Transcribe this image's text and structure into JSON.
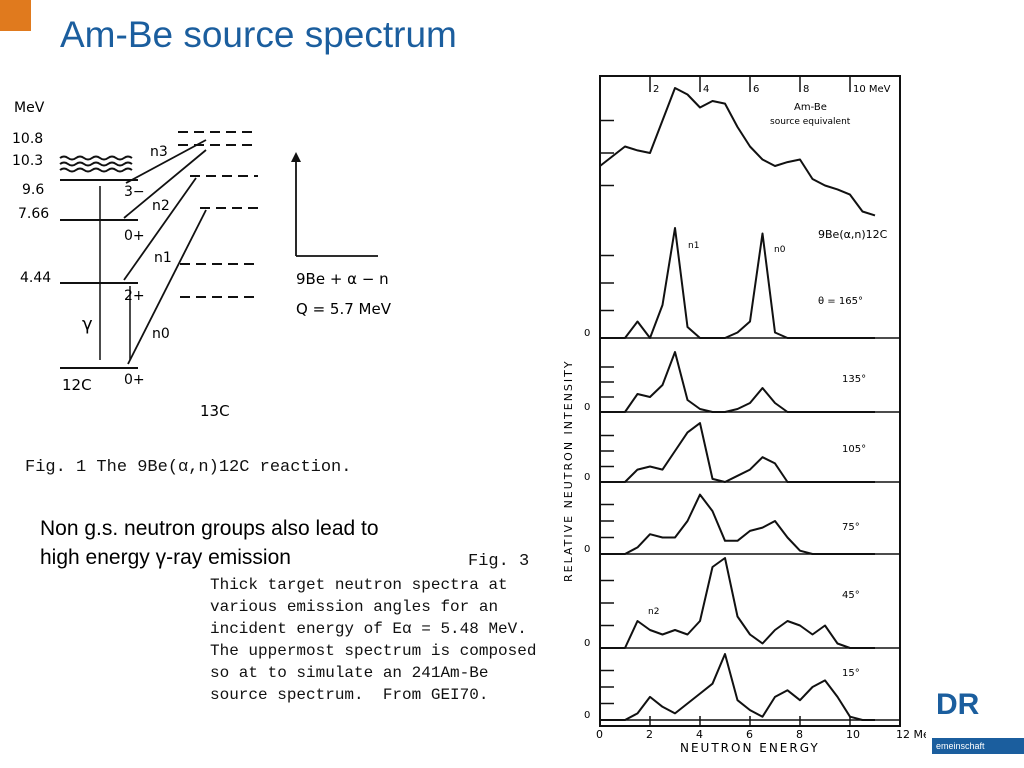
{
  "slide": {
    "title": "Am-Be source spectrum",
    "note_line1": "Non g.s. neutron groups also lead to",
    "note_line2": "high energy γ-ray emission",
    "logo_text": "DR",
    "footer_text": "emeinschaft",
    "accent_color": "#1b5e9e",
    "corner_color": "#e07a1e"
  },
  "fig1": {
    "unit": "MeV",
    "levels": [
      "10.8",
      "10.3",
      "9.6",
      "7.66",
      "4.44"
    ],
    "states": [
      "3−",
      "0+",
      "2+",
      "0+"
    ],
    "groups": [
      "n3",
      "n2",
      "n1",
      "n0"
    ],
    "gamma": "γ",
    "c12": "12C",
    "c13": "13C",
    "reaction": "9Be + α − n",
    "q_value": "Q = 5.7 MeV",
    "caption_prefix": "Fig. 1  The ",
    "caption_reaction": "9Be(α,n)12C reaction."
  },
  "fig3": {
    "heading": "Fig. 3",
    "caption_lines": [
      "Thick target neutron spectra at",
      "various emission angles for an",
      "incident energy of Eα = 5.48 MeV.",
      "The uppermost spectrum is composed",
      "so at to simulate an 241Am-Be",
      "source spectrum.  From GEI70."
    ],
    "ylabel": "RELATIVE  NEUTRON  INTENSITY",
    "xlabel": "NEUTRON  ENERGY",
    "x_ticks": [
      "0",
      "2",
      "4",
      "6",
      "8",
      "10",
      "12 MeV"
    ],
    "top_ticks": [
      "2",
      "4",
      "6",
      "8",
      "10 MeV"
    ],
    "zero_label": "0",
    "source_label_1": "Am-Be",
    "source_label_2": "source equivalent",
    "reaction_label": "9Be(α,n)12C",
    "angles": [
      "θ = 165°",
      "135°",
      "105°",
      "75°",
      "45°",
      "15°"
    ],
    "peak_labels": [
      "n1",
      "n0",
      "n2"
    ]
  },
  "chart_data": {
    "type": "line",
    "title": "",
    "xlabel": "NEUTRON ENERGY (MeV)",
    "ylabel": "RELATIVE NEUTRON INTENSITY",
    "xlim": [
      0,
      12
    ],
    "x": [
      0.0,
      1.0,
      1.5,
      2.0,
      2.5,
      3.0,
      3.5,
      4.0,
      4.5,
      5.0,
      5.5,
      6.0,
      6.5,
      7.0,
      7.5,
      8.0,
      8.5,
      9.0,
      9.5,
      10.0,
      10.5,
      11.0
    ],
    "series": [
      {
        "name": "Am-Be source equivalent",
        "values": [
          0.4,
          0.55,
          0.52,
          0.5,
          0.75,
          1.0,
          0.95,
          0.85,
          0.9,
          0.88,
          0.7,
          0.55,
          0.45,
          0.4,
          0.43,
          0.45,
          0.3,
          0.25,
          0.22,
          0.18,
          0.05,
          0.02
        ]
      },
      {
        "name": "θ = 165°",
        "values": [
          0,
          0,
          0.15,
          0,
          0.3,
          1.0,
          0.1,
          0,
          0,
          0,
          0.05,
          0.15,
          0.95,
          0.05,
          0,
          0,
          0,
          0,
          0,
          0,
          0,
          0
        ]
      },
      {
        "name": "135°",
        "values": [
          0,
          0,
          0.3,
          0.25,
          0.45,
          1.0,
          0.2,
          0.05,
          0,
          0,
          0.05,
          0.15,
          0.4,
          0.15,
          0,
          0,
          0,
          0,
          0,
          0,
          0,
          0
        ]
      },
      {
        "name": "105°",
        "values": [
          0,
          0,
          0.2,
          0.25,
          0.2,
          0.5,
          0.8,
          0.95,
          0.05,
          0,
          0.1,
          0.2,
          0.4,
          0.3,
          0,
          0,
          0,
          0,
          0,
          0,
          0,
          0
        ]
      },
      {
        "name": "75°",
        "values": [
          0,
          0,
          0.1,
          0.3,
          0.25,
          0.25,
          0.5,
          0.9,
          0.65,
          0.2,
          0.2,
          0.35,
          0.4,
          0.5,
          0.25,
          0.05,
          0,
          0,
          0,
          0,
          0,
          0
        ]
      },
      {
        "name": "45°",
        "values": [
          0,
          0,
          0.3,
          0.2,
          0.15,
          0.2,
          0.15,
          0.3,
          0.9,
          1.0,
          0.35,
          0.15,
          0.05,
          0.2,
          0.3,
          0.25,
          0.15,
          0.25,
          0.05,
          0,
          0,
          0
        ]
      },
      {
        "name": "15°",
        "values": [
          0,
          0,
          0.1,
          0.35,
          0.2,
          0.1,
          0.25,
          0.4,
          0.55,
          1.0,
          0.3,
          0.15,
          0.05,
          0.35,
          0.45,
          0.3,
          0.5,
          0.6,
          0.35,
          0.05,
          0,
          0
        ]
      }
    ]
  }
}
